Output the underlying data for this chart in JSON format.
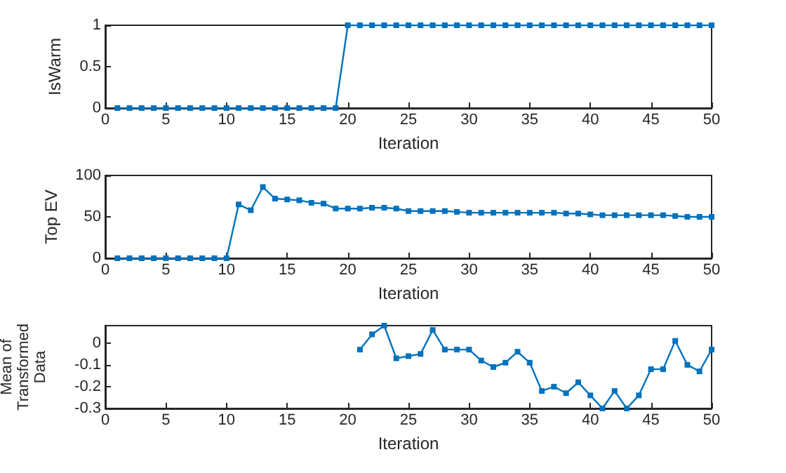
{
  "chart_data": [
    {
      "type": "line",
      "xlabel": "Iteration",
      "ylabel": "IsWarm",
      "color": "#0072bd",
      "marker": "square",
      "grid": false,
      "x": [
        1,
        2,
        3,
        4,
        5,
        6,
        7,
        8,
        9,
        10,
        11,
        12,
        13,
        14,
        15,
        16,
        17,
        18,
        19,
        20,
        21,
        22,
        23,
        24,
        25,
        26,
        27,
        28,
        29,
        30,
        31,
        32,
        33,
        34,
        35,
        36,
        37,
        38,
        39,
        40,
        41,
        42,
        43,
        44,
        45,
        46,
        47,
        48,
        49,
        50
      ],
      "values": [
        0,
        0,
        0,
        0,
        0,
        0,
        0,
        0,
        0,
        0,
        0,
        0,
        0,
        0,
        0,
        0,
        0,
        0,
        0,
        1,
        1,
        1,
        1,
        1,
        1,
        1,
        1,
        1,
        1,
        1,
        1,
        1,
        1,
        1,
        1,
        1,
        1,
        1,
        1,
        1,
        1,
        1,
        1,
        1,
        1,
        1,
        1,
        1,
        1,
        1
      ],
      "xlim": [
        0,
        50
      ],
      "xticks": [
        0,
        5,
        10,
        15,
        20,
        25,
        30,
        35,
        40,
        45,
        50
      ],
      "ylim": [
        0,
        1
      ],
      "yticks": [
        0,
        0.5,
        1
      ]
    },
    {
      "type": "line",
      "xlabel": "Iteration",
      "ylabel": "Top EV",
      "color": "#0072bd",
      "marker": "square",
      "grid": false,
      "x": [
        1,
        2,
        3,
        4,
        5,
        6,
        7,
        8,
        9,
        10,
        11,
        12,
        13,
        14,
        15,
        16,
        17,
        18,
        19,
        20,
        21,
        22,
        23,
        24,
        25,
        26,
        27,
        28,
        29,
        30,
        31,
        32,
        33,
        34,
        35,
        36,
        37,
        38,
        39,
        40,
        41,
        42,
        43,
        44,
        45,
        46,
        47,
        48,
        49,
        50
      ],
      "values": [
        0,
        0,
        0,
        0,
        0,
        0,
        0,
        0,
        0,
        0,
        65,
        58,
        86,
        72,
        71,
        70,
        67,
        66,
        60,
        60,
        60,
        61,
        61,
        60,
        57,
        57,
        57,
        57,
        56,
        55,
        55,
        55,
        55,
        55,
        55,
        55,
        55,
        54,
        54,
        53,
        52,
        52,
        52,
        52,
        52,
        52,
        51,
        50,
        50,
        50
      ],
      "xlim": [
        0,
        50
      ],
      "xticks": [
        0,
        5,
        10,
        15,
        20,
        25,
        30,
        35,
        40,
        45,
        50
      ],
      "ylim": [
        0,
        100
      ],
      "yticks": [
        0,
        50,
        100
      ]
    },
    {
      "type": "line",
      "xlabel": "Iteration",
      "ylabel": "Mean of Transformed Data",
      "color": "#0072bd",
      "marker": "square",
      "grid": false,
      "x": [
        21,
        22,
        23,
        24,
        25,
        26,
        27,
        28,
        29,
        30,
        31,
        32,
        33,
        34,
        35,
        36,
        37,
        38,
        39,
        40,
        41,
        42,
        43,
        44,
        45,
        46,
        47,
        48,
        49,
        50
      ],
      "values": [
        -0.03,
        0.04,
        0.08,
        -0.07,
        -0.06,
        -0.05,
        0.06,
        -0.03,
        -0.03,
        -0.03,
        -0.08,
        -0.11,
        -0.09,
        -0.04,
        -0.09,
        -0.22,
        -0.2,
        -0.23,
        -0.18,
        -0.24,
        -0.3,
        -0.22,
        -0.3,
        -0.24,
        -0.12,
        -0.12,
        0.01,
        -0.1,
        -0.13,
        -0.03
      ],
      "xlim": [
        0,
        50
      ],
      "xticks": [
        0,
        5,
        10,
        15,
        20,
        25,
        30,
        35,
        40,
        45,
        50
      ],
      "ylim": [
        -0.3,
        0.08
      ],
      "yticks": [
        -0.3,
        -0.2,
        -0.1,
        0
      ]
    }
  ]
}
